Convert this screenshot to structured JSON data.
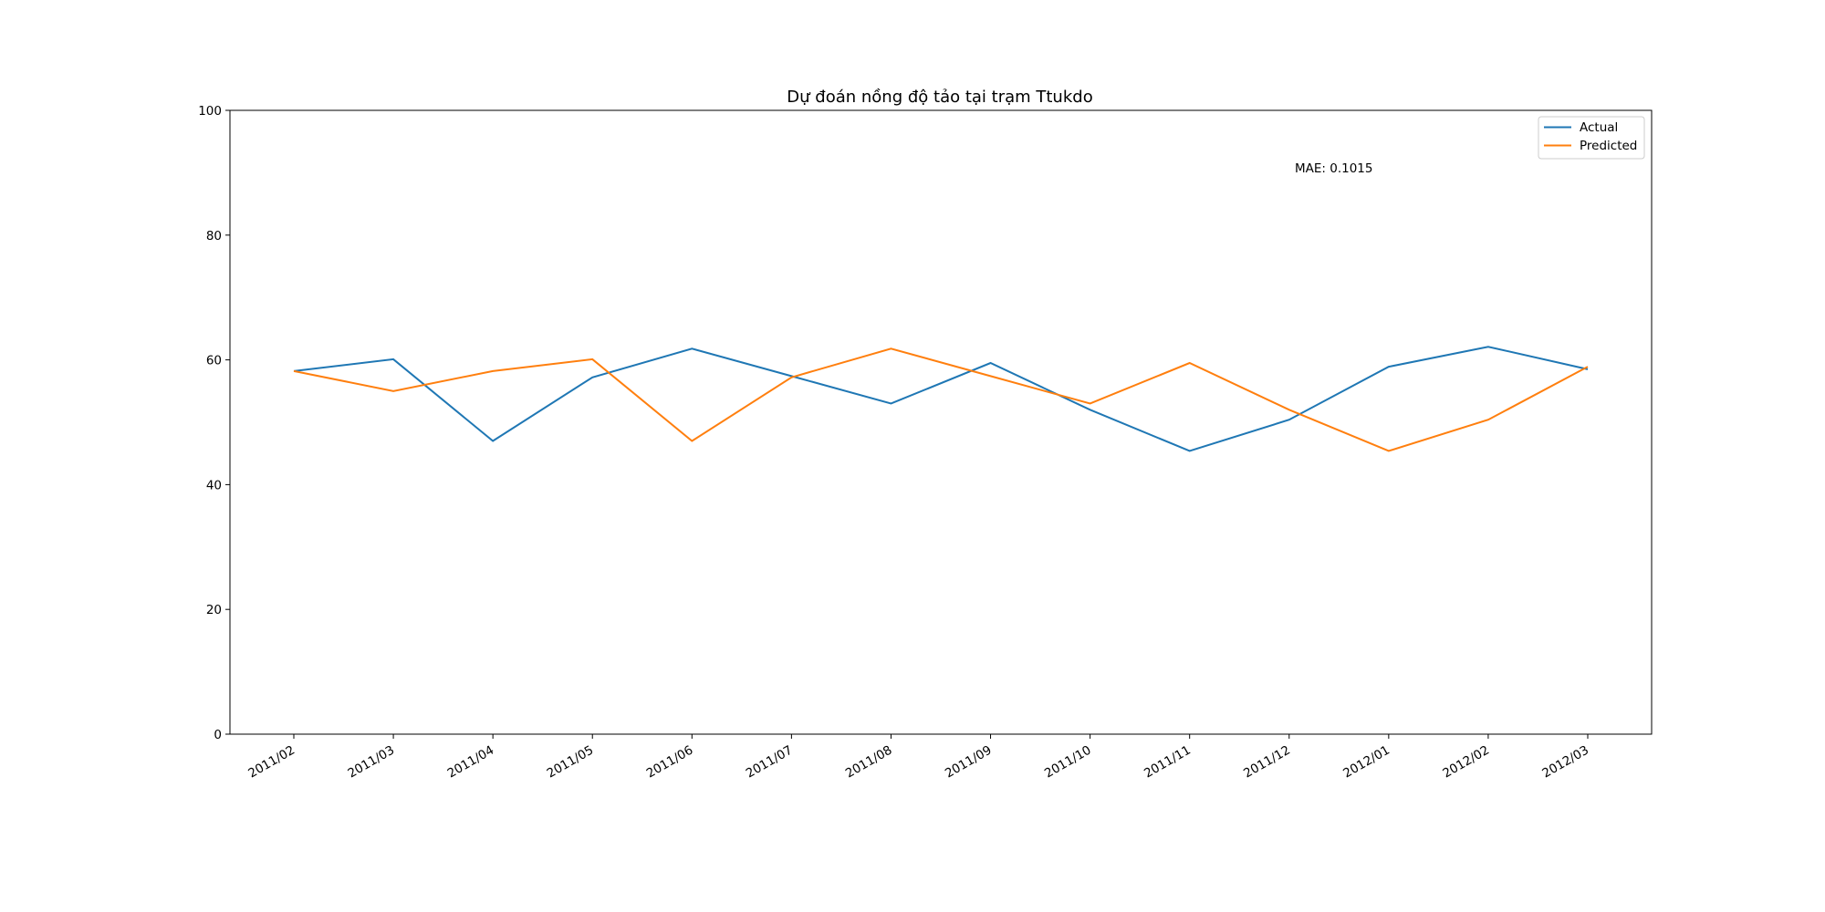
{
  "chart_data": {
    "type": "line",
    "title": "Dự đoán nồng độ tảo tại trạm Ttukdo",
    "xlabel": "",
    "ylabel": "",
    "categories": [
      "2011/02",
      "2011/03",
      "2011/04",
      "2011/05",
      "2011/06",
      "2011/07",
      "2011/08",
      "2011/09",
      "2011/10",
      "2011/11",
      "2011/12",
      "2012/01",
      "2012/02",
      "2012/03"
    ],
    "ylim": [
      0,
      100
    ],
    "yticks": [
      0,
      20,
      40,
      60,
      80,
      100
    ],
    "grid": false,
    "legend_position": "top-right",
    "annotation": "MAE: 0.1015",
    "series": [
      {
        "name": "Actual",
        "color": "#1f77b4",
        "values": [
          58.2,
          60.1,
          47.0,
          57.2,
          61.8,
          57.4,
          53.0,
          59.5,
          52.0,
          45.4,
          50.4,
          58.9,
          62.1,
          58.5
        ]
      },
      {
        "name": "Predicted",
        "color": "#ff7f0e",
        "values": [
          58.2,
          55.0,
          58.2,
          60.1,
          47.0,
          57.2,
          61.8,
          57.4,
          53.0,
          59.5,
          52.0,
          45.4,
          50.4,
          58.9
        ]
      }
    ]
  }
}
